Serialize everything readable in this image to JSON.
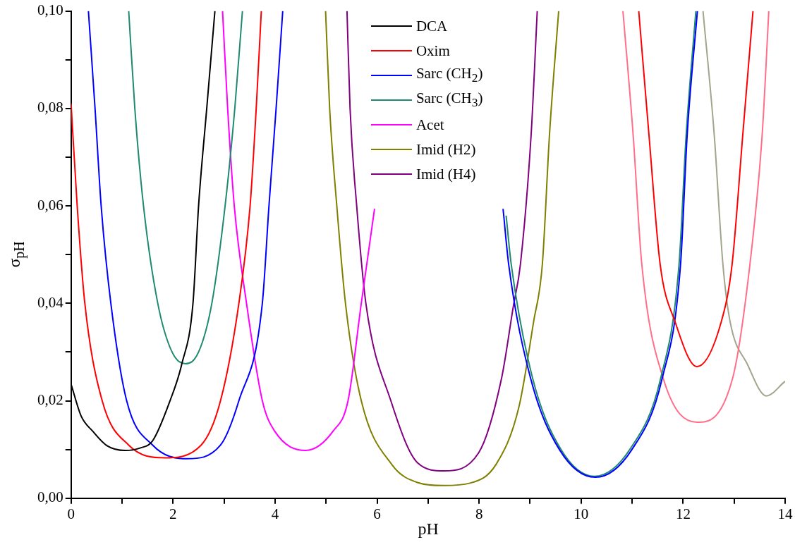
{
  "chart_data": {
    "type": "line",
    "xlabel": "pH",
    "ylabel": "σ$_{pH}$",
    "xlim": [
      0,
      14
    ],
    "ylim": [
      0,
      0.1
    ],
    "xticks": [
      0,
      {
        "value": 1,
        "label": null
      },
      2,
      {
        "value": 3,
        "label": null
      },
      4,
      {
        "value": 5,
        "label": null
      },
      6,
      {
        "value": 7,
        "label": null
      },
      8,
      {
        "value": 9,
        "label": null
      },
      10,
      {
        "value": 11,
        "label": null
      },
      12,
      {
        "value": 13,
        "label": null
      },
      14
    ],
    "yticks": [
      {
        "value": 0,
        "label": "0,00"
      },
      {
        "value": 0.01,
        "label": null
      },
      {
        "value": 0.02,
        "label": "0,02"
      },
      {
        "value": 0.03,
        "label": null
      },
      {
        "value": 0.04,
        "label": "0,04"
      },
      {
        "value": 0.05,
        "label": null
      },
      {
        "value": 0.06,
        "label": "0,06"
      },
      {
        "value": 0.07,
        "label": null
      },
      {
        "value": 0.08,
        "label": "0,08"
      },
      {
        "value": 0.09,
        "label": null
      },
      {
        "value": 0.1,
        "label": "0,10"
      }
    ],
    "legend": "top",
    "grid": false,
    "series": [
      {
        "name": "DCA",
        "color": "#000000",
        "x": [
          0,
          0.2,
          0.42,
          0.7,
          1.06,
          1.35,
          1.6,
          1.94,
          2.17,
          2.39,
          2.5,
          2.66,
          2.82
        ],
        "values": [
          0.0234,
          0.0168,
          0.0138,
          0.0108,
          0.0098,
          0.0103,
          0.0118,
          0.02,
          0.0275,
          0.04,
          0.06,
          0.08,
          0.1
        ]
      },
      {
        "name": "Oxim",
        "color": "#ff0000",
        "x": [
          0,
          0.12,
          0.27,
          0.61,
          1.13,
          1.84,
          2.55,
          2.93,
          3.29,
          3.51,
          3.63,
          3.73,
          7.5,
          11.13,
          11.33,
          11.55,
          11.84,
          12.27,
          12.75,
          12.96,
          13.17,
          13.37
        ],
        "values": [
          0.081,
          0.06,
          0.04,
          0.02,
          0.0109,
          0.0083,
          0.0109,
          0.02,
          0.04,
          0.06,
          0.08,
          0.1,
          null,
          0.1,
          0.0746,
          0.048,
          0.0363,
          0.027,
          0.0363,
          0.048,
          0.0746,
          0.1
        ]
      },
      {
        "name": "Sarc (CH$_{2}$)",
        "color": "#0000ff",
        "x": [
          0.34,
          0.47,
          0.59,
          0.78,
          1.09,
          1.6,
          2.27,
          2.93,
          3.29,
          3.75,
          3.88,
          4.02,
          4.15,
          6.3,
          8.47,
          8.58,
          9.01,
          9.58,
          10.28,
          10.99,
          11.59,
          11.95,
          12.08,
          12.28
        ],
        "values": [
          0.1,
          0.08,
          0.06,
          0.04,
          0.02,
          0.0109,
          0.0081,
          0.0109,
          0.02,
          0.04,
          0.06,
          0.08,
          0.1,
          null,
          0.0594,
          0.048,
          0.0246,
          0.0099,
          0.0043,
          0.0099,
          0.0246,
          0.048,
          0.0746,
          0.1
        ]
      },
      {
        "name": "Sarc (CH$_{3}$)",
        "color": "#1f8a70",
        "x": [
          1.13,
          1.25,
          1.42,
          1.7,
          1.98,
          2.24,
          2.5,
          2.76,
          3.02,
          3.21,
          3.36,
          6,
          8.53,
          8.63,
          9.05,
          9.6,
          10.26,
          10.96,
          11.56,
          11.92,
          12.06,
          12.25
        ],
        "values": [
          0.1,
          0.08,
          0.06,
          0.04,
          0.03,
          0.0276,
          0.03,
          0.04,
          0.06,
          0.08,
          0.1,
          null,
          0.058,
          0.048,
          0.0246,
          0.0101,
          0.0045,
          0.0101,
          0.0246,
          0.048,
          0.0746,
          0.1
        ]
      },
      {
        "name": "Acet",
        "color": "#ff00ff",
        "x": [
          2.97,
          3.07,
          3.2,
          3.44,
          3.75,
          3.99,
          4.6,
          5.14,
          5.43,
          5.69,
          5.95
        ],
        "values": [
          0.1,
          0.08,
          0.06,
          0.04,
          0.02,
          0.0138,
          0.0098,
          0.0138,
          0.02,
          0.04,
          0.0594
        ]
      },
      {
        "name": "Imid (H2)",
        "color": "#808000",
        "x": [
          4.99,
          5.07,
          5.21,
          5.38,
          5.69,
          6.29,
          6.8,
          7.31,
          7.82,
          8.33,
          8.78,
          9.07,
          9.24,
          9.38,
          9.56
        ],
        "values": [
          0.1,
          0.08,
          0.06,
          0.04,
          0.02,
          0.0069,
          0.0032,
          0.0026,
          0.0031,
          0.0069,
          0.0187,
          0.0363,
          0.048,
          0.0746,
          0.1
        ]
      },
      {
        "name": "Imid (H4)",
        "color": "#800080",
        "x": [
          5.41,
          5.47,
          5.6,
          5.78,
          6.27,
          6.8,
          7.31,
          7.99,
          8.44,
          8.67,
          8.81,
          9.02,
          9.14
        ],
        "values": [
          0.1,
          0.08,
          0.06,
          0.04,
          0.02,
          0.0072,
          0.0056,
          0.0093,
          0.0246,
          0.0393,
          0.048,
          0.0746,
          0.1
        ]
      },
      {
        "color": "#ff6f8a",
        "x": [
          10.82,
          11.02,
          11.19,
          11.61,
          12.27,
          12.97,
          13.31,
          13.55,
          13.68
        ],
        "values": [
          0.1,
          0.0746,
          0.048,
          0.0246,
          0.0156,
          0.0246,
          0.048,
          0.0746,
          0.1
        ]
      },
      {
        "color": "#a4a48c",
        "x": [
          12.39,
          12.61,
          12.78,
          12.92,
          13.26,
          13.63,
          14
        ],
        "values": [
          0.1,
          0.0746,
          0.048,
          0.0363,
          0.0275,
          0.021,
          0.024
        ]
      }
    ]
  }
}
